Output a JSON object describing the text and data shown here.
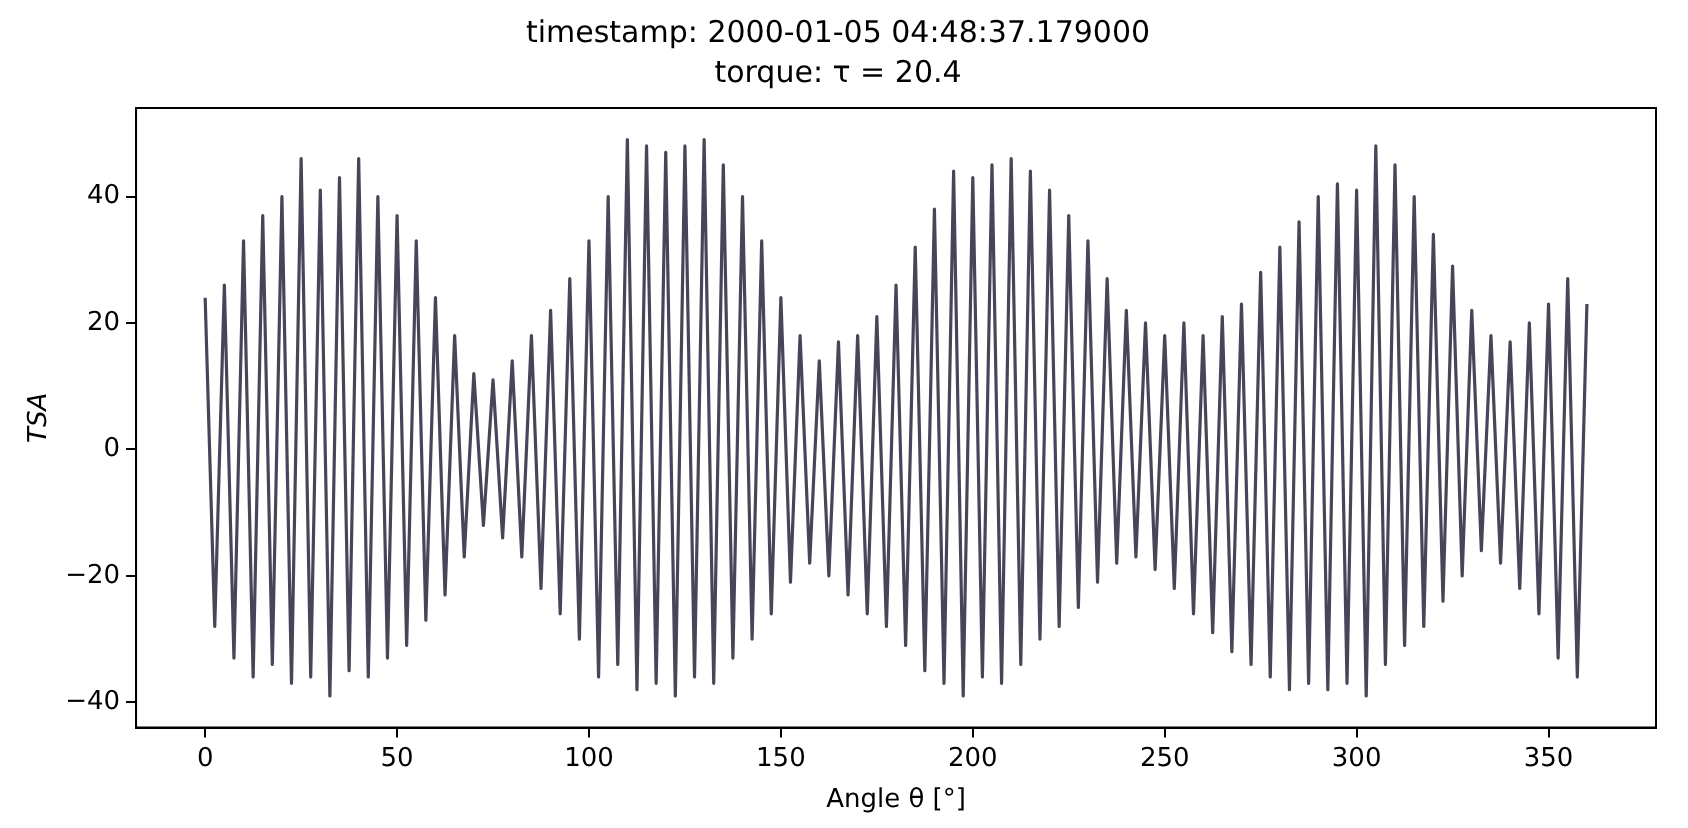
{
  "chart_data": {
    "type": "line",
    "title": "timestamp: 2000-01-05 04:48:37.179000",
    "subtitle": "torque: τ = 20.4",
    "xlabel": "Angle θ [°]",
    "ylabel": "TSA",
    "x": [
      0,
      2.5,
      5,
      7.5,
      10,
      12.5,
      15,
      17.5,
      20,
      22.5,
      25,
      27.5,
      30,
      32.5,
      35,
      37.5,
      40,
      42.5,
      45,
      47.5,
      50,
      52.5,
      55,
      57.5,
      60,
      62.5,
      65,
      67.5,
      70,
      72.5,
      75,
      77.5,
      80,
      82.5,
      85,
      87.5,
      90,
      92.5,
      95,
      97.5,
      100,
      102.5,
      105,
      107.5,
      110,
      112.5,
      115,
      117.5,
      120,
      122.5,
      125,
      127.5,
      130,
      132.5,
      135,
      137.5,
      140,
      142.5,
      145,
      147.5,
      150,
      152.5,
      155,
      157.5,
      160,
      162.5,
      165,
      167.5,
      170,
      172.5,
      175,
      177.5,
      180,
      182.5,
      185,
      187.5,
      190,
      192.5,
      195,
      197.5,
      200,
      202.5,
      205,
      207.5,
      210,
      212.5,
      215,
      217.5,
      220,
      222.5,
      225,
      227.5,
      230,
      232.5,
      235,
      237.5,
      240,
      242.5,
      245,
      247.5,
      250,
      252.5,
      255,
      257.5,
      260,
      262.5,
      265,
      267.5,
      270,
      272.5,
      275,
      277.5,
      280,
      282.5,
      285,
      287.5,
      290,
      292.5,
      295,
      297.5,
      300,
      302.5,
      305,
      307.5,
      310,
      312.5,
      315,
      317.5,
      320,
      322.5,
      325,
      327.5,
      330,
      332.5,
      335,
      337.5,
      340,
      342.5,
      345,
      347.5,
      350,
      352.5,
      355,
      357.5,
      360
    ],
    "series": [
      {
        "color": "#4a4458",
        "values": [
          24,
          -28,
          26,
          -33,
          33,
          -36,
          37,
          -34,
          40,
          -37,
          46,
          -36,
          41,
          -39,
          43,
          -35,
          46,
          -36,
          40,
          -33,
          37,
          -31,
          33,
          -27,
          24,
          -23,
          18,
          -17,
          12,
          -12,
          11,
          -14,
          14,
          -17,
          18,
          -22,
          22,
          -26,
          27,
          -30,
          33,
          -36,
          40,
          -34,
          49,
          -38,
          48,
          -37,
          47,
          -39,
          48,
          -36,
          49,
          -37,
          45,
          -33,
          40,
          -30,
          33,
          -26,
          24,
          -21,
          18,
          -18,
          14,
          -20,
          17,
          -23,
          18,
          -26,
          21,
          -28,
          26,
          -31,
          32,
          -35,
          38,
          -37,
          44,
          -39,
          43,
          -36,
          45,
          -37,
          46,
          -34,
          44,
          -30,
          41,
          -28,
          37,
          -25,
          33,
          -21,
          27,
          -18,
          22,
          -17,
          20,
          -19,
          18,
          -22,
          20,
          -26,
          18,
          -29,
          21,
          -32,
          23,
          -34,
          28,
          -36,
          32,
          -38,
          36,
          -37,
          40,
          -38,
          42,
          -37,
          41,
          -39,
          48,
          -34,
          45,
          -31,
          40,
          -28,
          34,
          -24,
          29,
          -20,
          22,
          -16,
          18,
          -18,
          17,
          -22,
          20,
          -26,
          23,
          -33,
          27,
          -36,
          23
        ]
      }
    ],
    "xlim": [
      -18,
      378
    ],
    "xticks": [
      0,
      50,
      100,
      150,
      200,
      250,
      300,
      350
    ],
    "ylim": [
      -44,
      54
    ],
    "yticks": [
      {
        "value": -40,
        "label": "−40"
      },
      {
        "value": -20,
        "label": "−20"
      },
      0,
      20,
      40
    ],
    "grid": false,
    "legend": false,
    "marker": "none",
    "line_style": "solid"
  }
}
